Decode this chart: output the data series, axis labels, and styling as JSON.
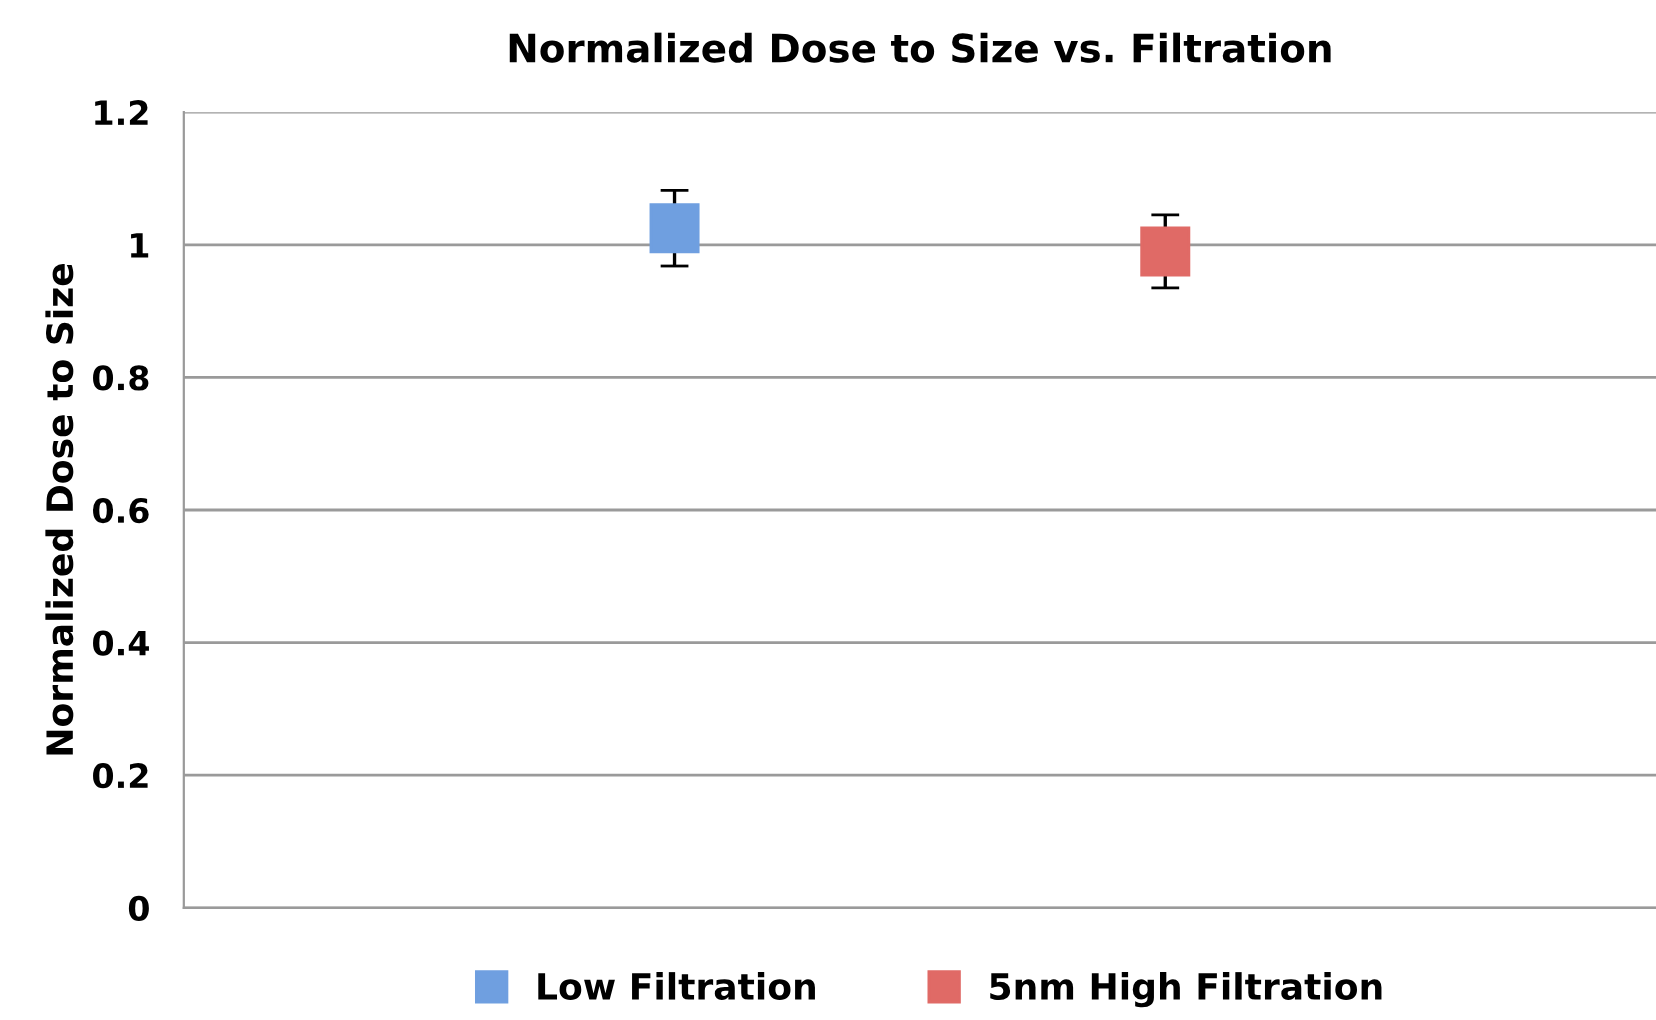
{
  "chart_data": {
    "type": "scatter",
    "title": "Normalized Dose to Size vs. Filtration",
    "ylabel": "Normalized Dose to Size",
    "series": [
      {
        "name": "Low Filtration",
        "color": "#6f9fe0",
        "values": [
          1.025,
          null
        ],
        "errors": [
          0.057,
          null
        ]
      },
      {
        "name": "5nm High Filtration",
        "color": "#e06a66",
        "values": [
          null,
          0.99
        ],
        "errors": [
          null,
          0.055
        ]
      }
    ],
    "categories": [
      null,
      null
    ],
    "ylim": [
      0,
      1.2
    ],
    "yticks": [
      0,
      0.2,
      0.4,
      0.6,
      0.8,
      1,
      1.2
    ],
    "tick_labels": "y",
    "grid": "y",
    "legend": "bottom",
    "marker": "square"
  }
}
